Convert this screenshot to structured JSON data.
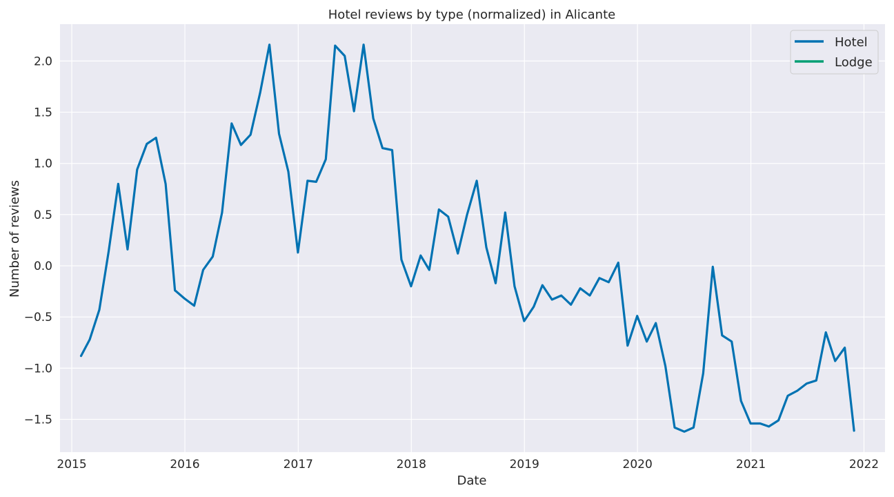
{
  "chart_data": {
    "type": "line",
    "title": "Hotel reviews by type (normalized) in Alicante",
    "xlabel": "Date",
    "ylabel": "Number of reviews",
    "xlim": [
      "2014-11-24",
      "2022-03-10"
    ],
    "ylim": [
      -1.82,
      2.36
    ],
    "x_ticks": [
      "2015",
      "2016",
      "2017",
      "2018",
      "2019",
      "2020",
      "2021",
      "2022"
    ],
    "y_ticks": [
      -1.5,
      -1.0,
      -0.5,
      0.0,
      0.5,
      1.0,
      1.5,
      2.0
    ],
    "y_tick_labels": [
      "−1.5",
      "−1.0",
      "−0.5",
      "0.0",
      "0.5",
      "1.0",
      "1.5",
      "2.0"
    ],
    "grid": true,
    "legend_position": "top-right",
    "series": [
      {
        "name": "Hotel",
        "color": "#0072b2",
        "x": [
          "2015-01-31",
          "2015-02-28",
          "2015-03-31",
          "2015-04-30",
          "2015-05-31",
          "2015-06-30",
          "2015-07-31",
          "2015-08-31",
          "2015-09-30",
          "2015-10-31",
          "2015-11-30",
          "2015-12-31",
          "2016-01-31",
          "2016-02-29",
          "2016-03-31",
          "2016-04-30",
          "2016-05-31",
          "2016-06-30",
          "2016-07-31",
          "2016-08-31",
          "2016-09-30",
          "2016-10-31",
          "2016-11-30",
          "2016-12-31",
          "2017-01-31",
          "2017-02-28",
          "2017-03-31",
          "2017-04-30",
          "2017-05-31",
          "2017-06-30",
          "2017-07-31",
          "2017-08-31",
          "2017-09-30",
          "2017-10-31",
          "2017-11-30",
          "2017-12-31",
          "2018-01-31",
          "2018-02-28",
          "2018-03-31",
          "2018-04-30",
          "2018-05-31",
          "2018-06-30",
          "2018-07-31",
          "2018-08-31",
          "2018-09-30",
          "2018-10-31",
          "2018-11-30",
          "2018-12-31",
          "2019-01-31",
          "2019-02-28",
          "2019-03-31",
          "2019-04-30",
          "2019-05-31",
          "2019-06-30",
          "2019-07-31",
          "2019-08-31",
          "2019-09-30",
          "2019-10-31",
          "2019-11-30",
          "2019-12-31",
          "2020-01-31",
          "2020-02-29",
          "2020-03-31",
          "2020-04-30",
          "2020-05-31",
          "2020-06-30",
          "2020-07-31",
          "2020-08-31",
          "2020-09-30",
          "2020-10-31",
          "2020-11-30",
          "2020-12-31",
          "2021-01-31",
          "2021-02-28",
          "2021-03-31",
          "2021-04-30",
          "2021-05-31",
          "2021-06-30",
          "2021-07-31",
          "2021-08-31",
          "2021-09-30",
          "2021-10-31",
          "2021-11-30"
        ],
        "values": [
          -0.88,
          -0.72,
          -0.43,
          0.14,
          0.8,
          0.16,
          0.94,
          1.19,
          1.25,
          0.8,
          -0.24,
          -0.32,
          -0.39,
          -0.04,
          0.09,
          0.52,
          1.39,
          1.18,
          1.28,
          1.69,
          2.16,
          1.29,
          0.92,
          0.13,
          0.83,
          0.82,
          1.04,
          2.15,
          2.05,
          1.51,
          2.16,
          1.44,
          1.15,
          1.13,
          0.06,
          -0.2,
          0.1,
          -0.04,
          0.55,
          0.48,
          0.12,
          0.5,
          0.83,
          0.18,
          -0.17,
          0.52,
          -0.2,
          -0.54,
          -0.4,
          -0.19,
          -0.33,
          -0.29,
          -0.38,
          -0.22,
          -0.29,
          -0.12,
          -0.16,
          0.03,
          -0.78,
          -0.49,
          -0.74,
          -0.56,
          -0.98,
          -1.58,
          -1.62,
          -1.58,
          -1.05,
          -0.01,
          -0.68,
          -0.74,
          -1.32,
          -1.54,
          -1.54,
          -1.57,
          -1.51,
          -1.27,
          -1.22,
          -1.15,
          -1.12,
          -0.65,
          -0.93,
          -0.8,
          -1.61
        ]
      },
      {
        "name": "Lodge",
        "color": "#009e73",
        "x": [],
        "values": []
      }
    ]
  }
}
